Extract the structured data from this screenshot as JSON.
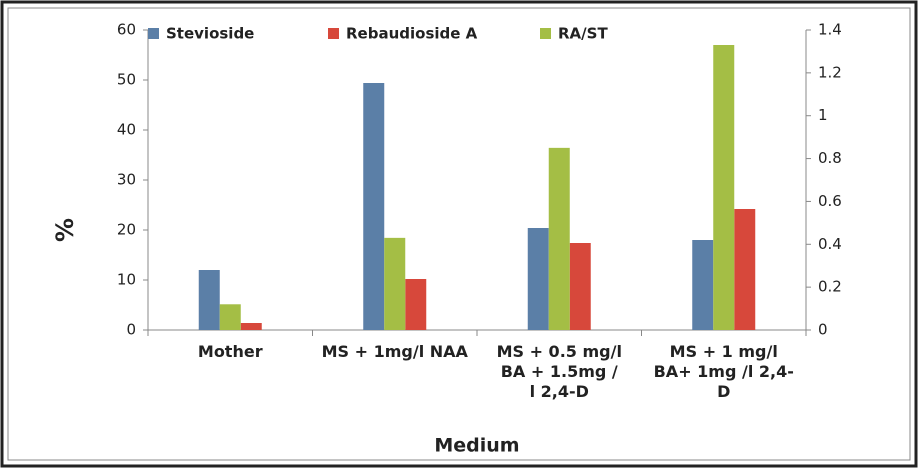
{
  "chart_data": {
    "type": "bar",
    "x_label": "Medium",
    "y_label": "%",
    "categories": [
      "Mother",
      "MS + 1mg/l NAA",
      "MS + 0.5 mg/l BA + 1.5mg / l 2,4-D",
      "MS + 1 mg/l BA+ 1mg /l 2,4-D"
    ],
    "series": [
      {
        "name": "Stevioside",
        "color": "#5b7fa7",
        "values": [
          12,
          49.4,
          20.4,
          18
        ]
      },
      {
        "name": "Rebaudioside A",
        "color": "#d7483b",
        "values": [
          1.4,
          10.2,
          17.4,
          24.2
        ]
      },
      {
        "name": "RA/ST",
        "color": "#a4be45",
        "axis": "y2",
        "values": [
          0.12,
          0.43,
          0.85,
          1.33
        ]
      }
    ],
    "ylim": [
      0,
      60
    ],
    "yticks": [
      0,
      10,
      20,
      30,
      40,
      50,
      60
    ],
    "y2lim": [
      0,
      1.4
    ],
    "y2ticks": [
      0,
      0.2,
      0.4,
      0.6,
      0.8,
      1,
      1.2,
      1.4
    ],
    "legend": "top"
  }
}
